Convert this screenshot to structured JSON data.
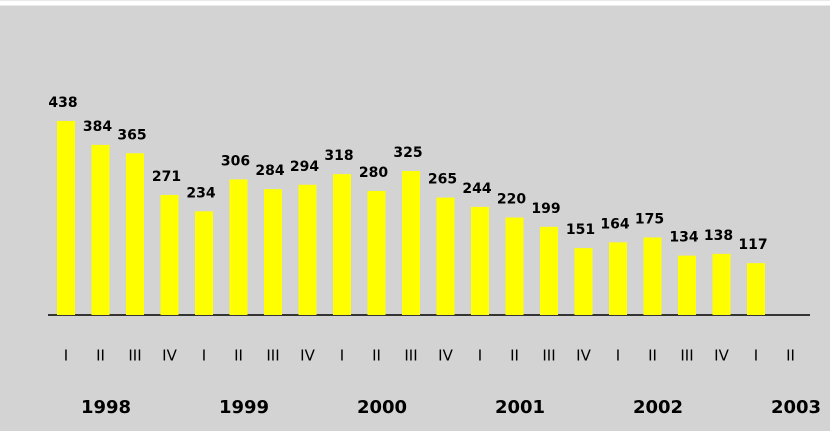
{
  "chart_data": {
    "type": "bar",
    "categories": [
      "I",
      "II",
      "III",
      "IV",
      "I",
      "II",
      "III",
      "IV",
      "I",
      "II",
      "III",
      "IV",
      "I",
      "II",
      "III",
      "IV",
      "I",
      "II",
      "III",
      "IV",
      "I",
      "II"
    ],
    "values": [
      438,
      384,
      365,
      271,
      234,
      306,
      284,
      294,
      318,
      280,
      325,
      265,
      244,
      220,
      199,
      151,
      164,
      175,
      134,
      138,
      117,
      null
    ],
    "years": [
      "1998",
      "1999",
      "2000",
      "2001",
      "2002",
      "2003"
    ],
    "color": "#ffff00"
  }
}
